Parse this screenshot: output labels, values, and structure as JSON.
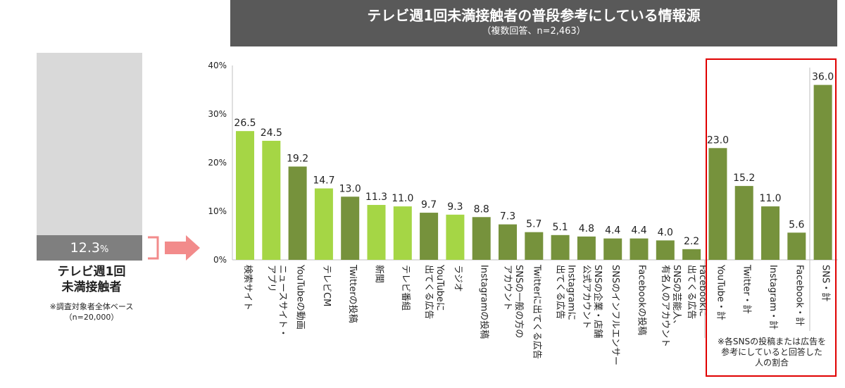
{
  "header": {
    "title": "テレビ週1回未満接触者の普段参考にしている情報源",
    "subtitle": "（複数回答、n=2,463）"
  },
  "left_panel": {
    "value_text": "12.3",
    "value_unit": "%",
    "value": 12.3,
    "label_line1": "テレビ週1回",
    "label_line2": "未満接触者",
    "note_line1": "※調査対象者全体ベース",
    "note_line2": "（n=20,000）"
  },
  "sns_note": {
    "line1": "※各SNSの投稿または広告を",
    "line2": "参考にしていると回答した",
    "line3": "人の割合"
  },
  "chart_data": {
    "type": "bar",
    "title": "テレビ週1回未満接触者の普段参考にしている情報源",
    "subtitle": "（複数回答、n=2,463）",
    "ylim": [
      0,
      40
    ],
    "yticks": [
      "0%",
      "10%",
      "20%",
      "30%",
      "40%"
    ],
    "colors": {
      "light": "#a5d645",
      "dark": "#76923c"
    },
    "categories": [
      [
        "検索サイト"
      ],
      [
        "アプリ",
        "ニュースサイト・"
      ],
      [
        "YouTubeの動画"
      ],
      [
        "テレビCM"
      ],
      [
        "Twitterの投稿"
      ],
      [
        "新聞"
      ],
      [
        "テレビ番組"
      ],
      [
        "出てくる広告",
        "YouTubeに"
      ],
      [
        "ラジオ"
      ],
      [
        "Instagramの投稿"
      ],
      [
        "アカウント",
        "SNSの一般の方の"
      ],
      [
        "Twitterに出てくる広告"
      ],
      [
        "出てくる広告",
        "Instagramに"
      ],
      [
        "公式アカウント",
        "SNSの企業・店舗"
      ],
      [
        "SNSのインフルエンサー"
      ],
      [
        "Facebookの投稿"
      ],
      [
        "有名人のアカウント",
        "SNSの芸能人、"
      ],
      [
        "出てくる広告",
        "Facebookに"
      ],
      [
        "YouTube・計"
      ],
      [
        "Twitter・計"
      ],
      [
        "Instagram・計"
      ],
      [
        "Facebook・計"
      ],
      [
        "SNS・計"
      ]
    ],
    "values": [
      26.5,
      24.5,
      19.2,
      14.7,
      13.0,
      11.3,
      11.0,
      9.7,
      9.3,
      8.8,
      7.3,
      5.7,
      5.1,
      4.8,
      4.4,
      4.4,
      4.0,
      2.2,
      23.0,
      15.2,
      11.0,
      5.6,
      36.0
    ],
    "value_labels": [
      "26.5",
      "24.5",
      "19.2",
      "14.7",
      "13.0",
      "11.3",
      "11.0",
      "9.7",
      "9.3",
      "8.8",
      "7.3",
      "5.7",
      "5.1",
      "4.8",
      "4.4",
      "4.4",
      "4.0",
      "2.2",
      "23.0",
      "15.2",
      "11.0",
      "5.6",
      "36.0"
    ],
    "bar_colors": [
      "light",
      "light",
      "dark",
      "light",
      "dark",
      "light",
      "light",
      "dark",
      "light",
      "dark",
      "dark",
      "dark",
      "dark",
      "dark",
      "dark",
      "dark",
      "dark",
      "dark",
      "dark",
      "dark",
      "dark",
      "dark",
      "dark"
    ]
  }
}
